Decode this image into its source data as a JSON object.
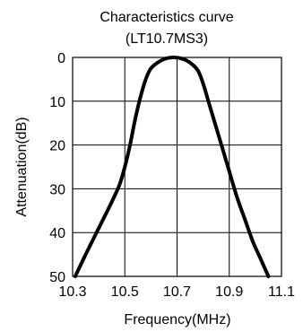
{
  "chart_data": {
    "type": "line",
    "title": "Characteristics curve",
    "subtitle": "(LT10.7MS3)",
    "xlabel": "Frequency(MHz)",
    "ylabel": "Attenuation(dB)",
    "xlim": [
      10.3,
      11.1
    ],
    "ylim": [
      0,
      50
    ],
    "y_inverted": true,
    "grid": true,
    "x_ticks": [
      "10.3",
      "10.5",
      "10.7",
      "10.9",
      "11.1"
    ],
    "y_ticks": [
      "0",
      "10",
      "20",
      "30",
      "40",
      "50"
    ],
    "series": [
      {
        "color": "#000000",
        "points": [
          [
            10.31,
            50
          ],
          [
            10.35,
            45
          ],
          [
            10.4,
            39
          ],
          [
            10.45,
            33
          ],
          [
            10.48,
            29
          ],
          [
            10.5,
            25
          ],
          [
            10.52,
            20
          ],
          [
            10.54,
            14
          ],
          [
            10.56,
            9
          ],
          [
            10.58,
            5
          ],
          [
            10.6,
            2.5
          ],
          [
            10.63,
            1
          ],
          [
            10.66,
            0.2
          ],
          [
            10.69,
            0
          ],
          [
            10.72,
            0.3
          ],
          [
            10.75,
            1.2
          ],
          [
            10.78,
            3
          ],
          [
            10.8,
            6
          ],
          [
            10.82,
            10
          ],
          [
            10.84,
            14
          ],
          [
            10.86,
            18
          ],
          [
            10.88,
            22
          ],
          [
            10.9,
            26
          ],
          [
            10.93,
            32
          ],
          [
            10.96,
            37
          ],
          [
            10.99,
            42
          ],
          [
            11.02,
            46
          ],
          [
            11.05,
            50
          ]
        ]
      }
    ]
  }
}
